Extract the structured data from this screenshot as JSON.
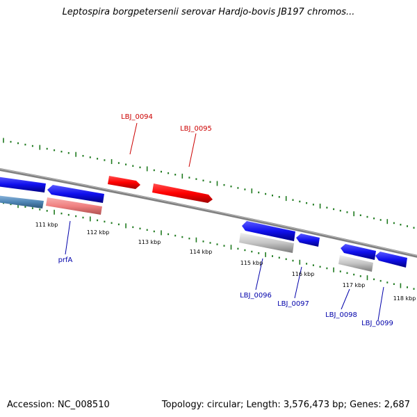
{
  "title": "Leptospira borgpetersenii serovar Hardjo-bovis JB197 chromos...",
  "footer": {
    "accession_label": "Accession: NC_008510",
    "topology_label": "Topology: circular; Length: 3,576,473 bp; Genes: 2,687"
  },
  "colors": {
    "backbone": "#808080",
    "tick": "#1f7a1f",
    "gene_red": "#ff0000",
    "gene_pink": "#f08080",
    "gene_blue": "#1010ee",
    "gene_steel": "#4f86b6",
    "gene_gray": "#c4c4c4",
    "label_red": "#cc0000",
    "label_blue": "#0000aa"
  },
  "scale_labels": [
    "111 kbp",
    "112 kbp",
    "113 kbp",
    "114 kbp",
    "115 kbp",
    "116 kbp",
    "117 kbp",
    "118 kbp"
  ],
  "gene_labels": [
    {
      "name": "LBJ_0094",
      "color": "label_red"
    },
    {
      "name": "LBJ_0095",
      "color": "label_red"
    },
    {
      "name": "prfA",
      "color": "label_blue"
    },
    {
      "name": "LBJ_0096",
      "color": "label_blue"
    },
    {
      "name": "LBJ_0097",
      "color": "label_blue"
    },
    {
      "name": "LBJ_0098",
      "color": "label_blue"
    },
    {
      "name": "LBJ_0099",
      "color": "label_blue"
    }
  ]
}
